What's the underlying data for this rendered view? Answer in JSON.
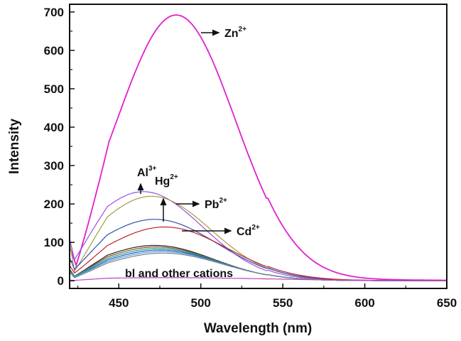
{
  "chart_data": {
    "type": "line",
    "title": "",
    "xlabel": "Wavelength (nm)",
    "ylabel": "Intensity",
    "xlim": [
      420,
      650
    ],
    "ylim": [
      -20,
      720
    ],
    "xticks": [
      450,
      500,
      550,
      600,
      650
    ],
    "yticks": [
      0,
      100,
      200,
      300,
      400,
      500,
      600,
      700
    ],
    "grid": false,
    "legend": "none",
    "series": [
      {
        "name": "Zn2+",
        "color": "#e020d0",
        "peak": 692,
        "peak_x": 485,
        "width": 36,
        "start_y": 90,
        "min_x": 424,
        "min_y": 40
      },
      {
        "name": "Al3+",
        "color": "#9a50e0",
        "peak": 232,
        "peak_x": 465,
        "width": 36,
        "start_y": 110,
        "min_x": 423,
        "min_y": 55
      },
      {
        "name": "Hg2+",
        "color": "#a0a040",
        "peak": 220,
        "peak_x": 470,
        "width": 36,
        "start_y": 100,
        "min_x": 423,
        "min_y": 25
      },
      {
        "name": "Pb2+",
        "color": "#3050b0",
        "peak": 160,
        "peak_x": 472,
        "width": 38,
        "start_y": 60,
        "min_x": 423,
        "min_y": 30
      },
      {
        "name": "Cd2+",
        "color": "#c02030",
        "peak": 140,
        "peak_x": 478,
        "width": 38,
        "start_y": 40,
        "min_x": 423,
        "min_y": 20
      },
      {
        "name": "",
        "color": "#222222",
        "peak": 92,
        "peak_x": 472,
        "width": 36,
        "start_y": 30,
        "min_x": 423,
        "min_y": 12
      },
      {
        "name": "",
        "color": "#8a5020",
        "peak": 88,
        "peak_x": 473,
        "width": 36,
        "start_y": 28,
        "min_x": 423,
        "min_y": 12
      },
      {
        "name": "",
        "color": "#20a080",
        "peak": 84,
        "peak_x": 474,
        "width": 36,
        "start_y": 26,
        "min_x": 423,
        "min_y": 12
      },
      {
        "name": "",
        "color": "#2050c0",
        "peak": 80,
        "peak_x": 475,
        "width": 36,
        "start_y": 25,
        "min_x": 423,
        "min_y": 10
      },
      {
        "name": "",
        "color": "#40a0e0",
        "peak": 76,
        "peak_x": 476,
        "width": 36,
        "start_y": 24,
        "min_x": 423,
        "min_y": 10
      },
      {
        "name": "",
        "color": "#808080",
        "peak": 72,
        "peak_x": 477,
        "width": 36,
        "start_y": 22,
        "min_x": 423,
        "min_y": 8
      },
      {
        "name": "",
        "color": "#c040c0",
        "peak": 8,
        "peak_x": 480,
        "width": 60,
        "start_y": 2,
        "min_x": 423,
        "min_y": 1
      }
    ],
    "annotations": [
      {
        "base": "Zn",
        "sup": "2+"
      },
      {
        "base": "Al",
        "sup": "3+"
      },
      {
        "base": "Hg",
        "sup": "2+"
      },
      {
        "base": "Pb",
        "sup": "2+"
      },
      {
        "base": "Cd",
        "sup": "2+"
      },
      {
        "base": "bl and other cations",
        "sup": ""
      }
    ]
  }
}
